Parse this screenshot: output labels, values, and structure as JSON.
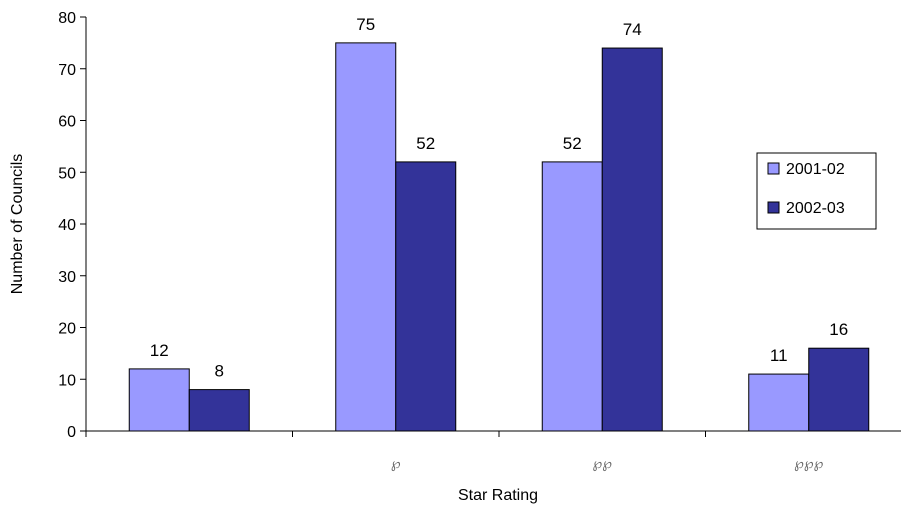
{
  "chart_data": {
    "type": "bar",
    "categories": [
      "",
      "℘",
      "℘℘",
      "℘℘℘"
    ],
    "series": [
      {
        "name": "2001-02",
        "values": [
          12,
          75,
          52,
          11
        ],
        "color": "#9999FF"
      },
      {
        "name": "2002-03",
        "values": [
          8,
          52,
          74,
          16
        ],
        "color": "#333399"
      }
    ],
    "xlabel": "Star Rating",
    "ylabel": "Number of Councils",
    "ylim": [
      0,
      80
    ],
    "yticks": [
      0,
      10,
      20,
      30,
      40,
      50,
      60,
      70,
      80
    ],
    "grid": false,
    "legend_position": "right"
  }
}
